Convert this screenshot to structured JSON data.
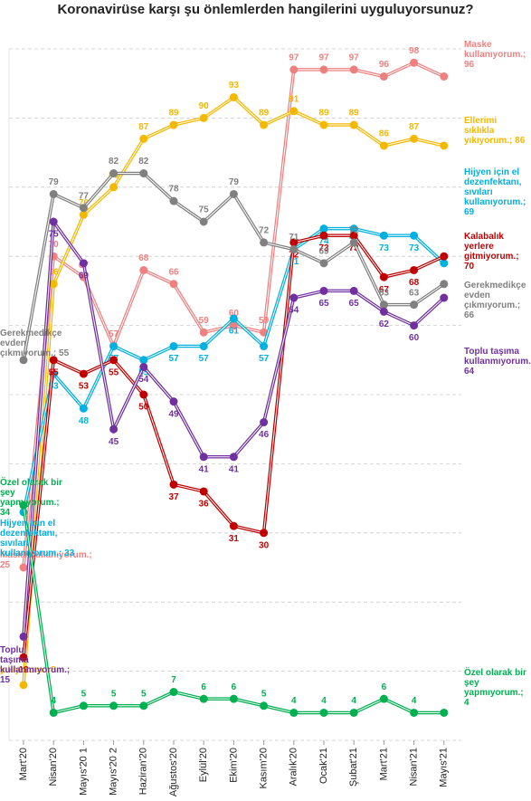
{
  "chart_data": {
    "type": "line",
    "title": "Koronavirüse karşı şu önlemlerden hangilerini uyguluyorsunuz?",
    "categories": [
      "Mart'20",
      "Nisan'20",
      "Mayıs'20 1",
      "Mayıs'20 2",
      "Haziran'20",
      "Ağustos'20",
      "Eylül'20",
      "Ekim'20",
      "Kasım'20",
      "Aralık'20",
      "Ocak'21",
      "Şubat'21",
      "Mart'21",
      "Nisan'21",
      "Mayıs'21"
    ],
    "ylim": [
      0,
      100
    ],
    "yticks": [
      0,
      10,
      20,
      30,
      40,
      50,
      60,
      70,
      80,
      90,
      100
    ],
    "grid": true,
    "series": [
      {
        "label_start": "Maske kullanıyorum.; 25",
        "label_end": "Maske kullanıyorum.; 96",
        "color": "#f08080",
        "label_pos": "above",
        "values": [
          25,
          70,
          67,
          57,
          68,
          66,
          59,
          60,
          59,
          97,
          97,
          97,
          96,
          98,
          96
        ]
      },
      {
        "label_start": "yıkıyorum.; 8",
        "label_end": "Ellerimi sıklıkla yıkıyorum.; 86",
        "color": "#f5b800",
        "label_pos": "above",
        "values": [
          8,
          66,
          76,
          80,
          87,
          89,
          90,
          93,
          89,
          91,
          89,
          89,
          86,
          87,
          86
        ]
      },
      {
        "label_start": "Hijyen için el dezenfektanı, sıvıları kullanıyorum.; 33",
        "label_end": "Hijyen için el dezenfektanı, sıvıları kullanıyorum.; 69",
        "color": "#00b0e0",
        "label_pos": "below",
        "values": [
          33,
          53,
          48,
          57,
          55,
          57,
          57,
          61,
          57,
          71,
          74,
          74,
          73,
          73,
          69
        ]
      },
      {
        "label_end": "Kalabalık yerlere gitmiyorum.; 70",
        "color": "#c00000",
        "label_pos": "below",
        "values": [
          12,
          55,
          53,
          55,
          50,
          37,
          36,
          31,
          30,
          72,
          73,
          73,
          67,
          68,
          70
        ]
      },
      {
        "label_start": "Gerekmedikçe evden çıkmıyorum.; 55",
        "label_end": "Gerekmedikçe evden çıkmıyorum.; 66",
        "color": "#808080",
        "label_pos": "above",
        "values": [
          55,
          79,
          77,
          82,
          82,
          78,
          75,
          79,
          72,
          71,
          69,
          72,
          63,
          63,
          66
        ]
      },
      {
        "label_start": "Toplu taşıma kullanmıyorum.; 15",
        "label_end": "Toplu taşıma kullanmıyorum.; 64",
        "color": "#7030a0",
        "label_pos": "below",
        "values": [
          15,
          75,
          69,
          45,
          54,
          49,
          41,
          41,
          46,
          64,
          65,
          65,
          62,
          60,
          64
        ]
      },
      {
        "label_start": "Özel olarak bir şey yapmıyorum.; 34",
        "label_end": "Özel olarak bir şey yapmıyorum.; 4",
        "color": "#00b050",
        "label_pos": "above",
        "values": [
          34,
          4,
          5,
          5,
          5,
          7,
          6,
          6,
          5,
          4,
          4,
          4,
          6,
          4,
          4
        ]
      }
    ]
  }
}
